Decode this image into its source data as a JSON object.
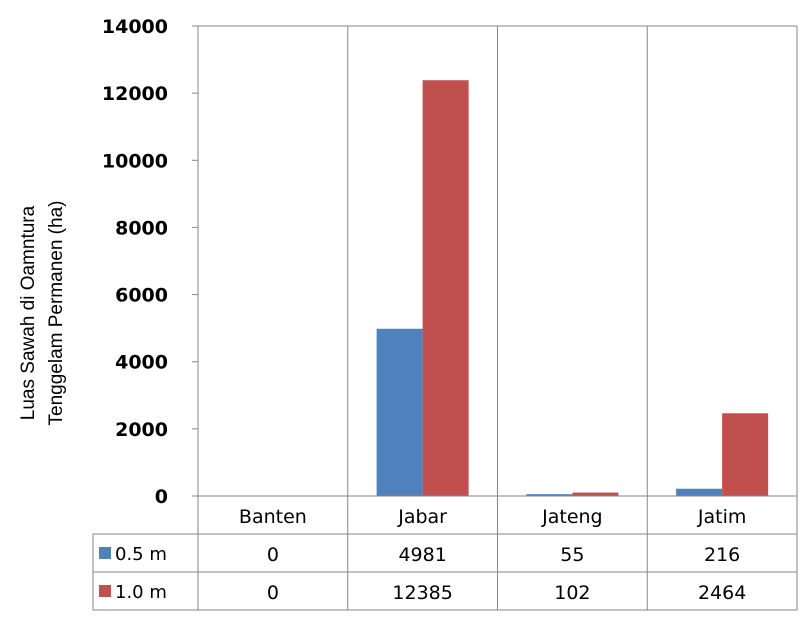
{
  "chart_data": {
    "type": "bar",
    "ylabel_line1": "Luas Sawah di Oamntura",
    "ylabel_line2": "Tenggelam Permanen (ha)",
    "ylim": [
      0,
      14000
    ],
    "yticks": [
      "0",
      "2000",
      "4000",
      "6000",
      "8000",
      "10000",
      "12000",
      "14000"
    ],
    "categories": [
      "Banten",
      "Jabar",
      "Jateng",
      "Jatim"
    ],
    "series": [
      {
        "name": "0.5 m",
        "color": "#4f81bd",
        "values": [
          0,
          4981,
          55,
          216
        ]
      },
      {
        "name": "1.0 m",
        "color": "#c0504d",
        "values": [
          0,
          12385,
          102,
          2464
        ]
      }
    ],
    "grid": "vertical",
    "data_table": true
  }
}
